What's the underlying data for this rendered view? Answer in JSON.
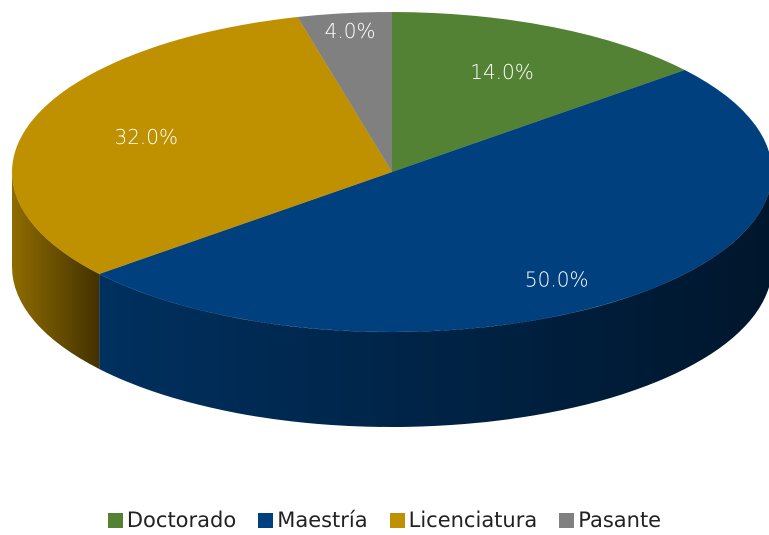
{
  "chart_data": {
    "type": "pie",
    "categories": [
      "Doctorado",
      "Maestría",
      "Licenciatura",
      "Pasante"
    ],
    "values": [
      14,
      50,
      32,
      4
    ],
    "value_labels": [
      "14.0%",
      "50.0%",
      "32.0%",
      "4.0%"
    ],
    "colors": [
      "#548235",
      "#00407f",
      "#bf9000",
      "#808080"
    ],
    "legend": "bottom"
  }
}
